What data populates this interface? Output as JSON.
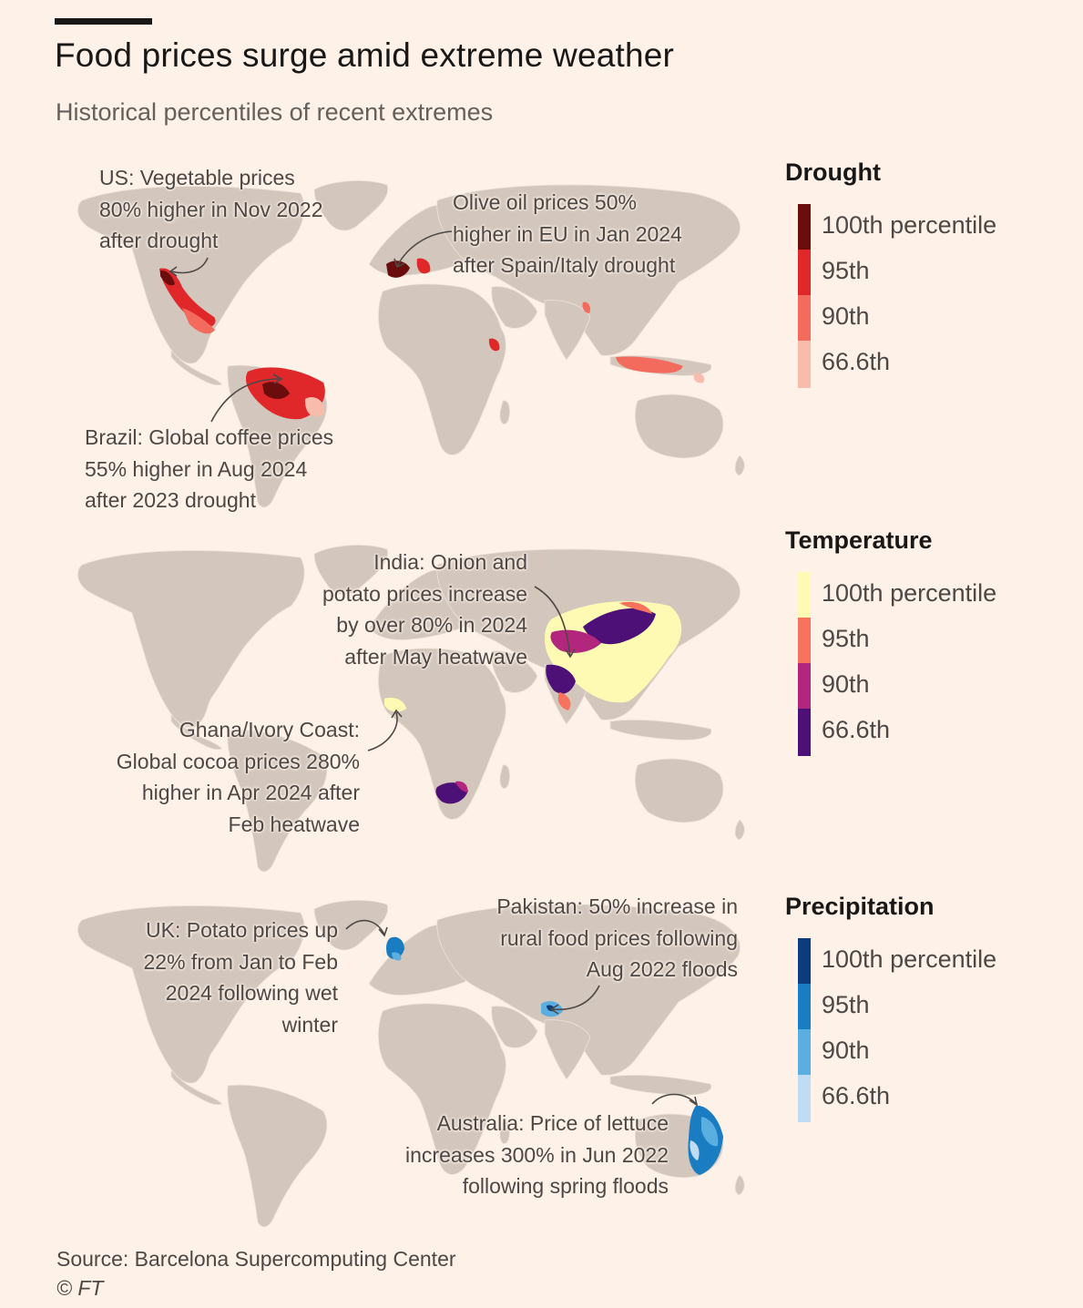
{
  "header": {
    "title": "Food prices surge amid extreme weather",
    "subtitle": "Historical percentiles of recent extremes"
  },
  "colors": {
    "background": "#fdf1e8",
    "land": "#d3c6bc",
    "drought": [
      "#6b0d0d",
      "#e0282b",
      "#f36b5c",
      "#f8bcac"
    ],
    "temperature": [
      "#fffab3",
      "#f7735e",
      "#b2267e",
      "#4d1076"
    ],
    "precipitation": [
      "#0b3d7e",
      "#1a7cc1",
      "#5aaee0",
      "#bfdcf2"
    ]
  },
  "panels": {
    "drought": {
      "legend_title": "Drought",
      "legend_labels": [
        "100th percentile",
        "95th",
        "90th",
        "66.6th"
      ],
      "annotations": {
        "us": [
          "US: Vegetable prices",
          "80% higher in Nov 2022",
          "after drought"
        ],
        "eu": [
          "Olive oil prices 50%",
          "higher in EU in Jan 2024",
          "after Spain/Italy drought"
        ],
        "brazil": [
          "Brazil: Global coffee prices",
          "55% higher in Aug 2024",
          "after 2023 drought"
        ]
      }
    },
    "temperature": {
      "legend_title": "Temperature",
      "legend_labels": [
        "100th percentile",
        "95th",
        "90th",
        "66.6th"
      ],
      "annotations": {
        "india": [
          "India: Onion and",
          "potato prices increase",
          "by over 80% in 2024",
          "after May heatwave"
        ],
        "ghana": [
          "Ghana/Ivory Coast:",
          "Global cocoa prices 280%",
          "higher in Apr 2024 after",
          "Feb heatwave"
        ]
      }
    },
    "precipitation": {
      "legend_title": "Precipitation",
      "legend_labels": [
        "100th percentile",
        "95th",
        "90th",
        "66.6th"
      ],
      "annotations": {
        "uk": [
          "UK: Potato prices up",
          "22% from Jan to Feb",
          "2024 following wet",
          "winter"
        ],
        "pakistan": [
          "Pakistan: 50% increase in",
          "rural food prices following",
          "Aug 2022 floods"
        ],
        "australia": [
          "Australia: Price of lettuce",
          "increases 300% in Jun 2022",
          "following spring floods"
        ]
      }
    }
  },
  "footer": {
    "source": "Source: Barcelona Supercomputing Center",
    "credit": "© FT"
  }
}
